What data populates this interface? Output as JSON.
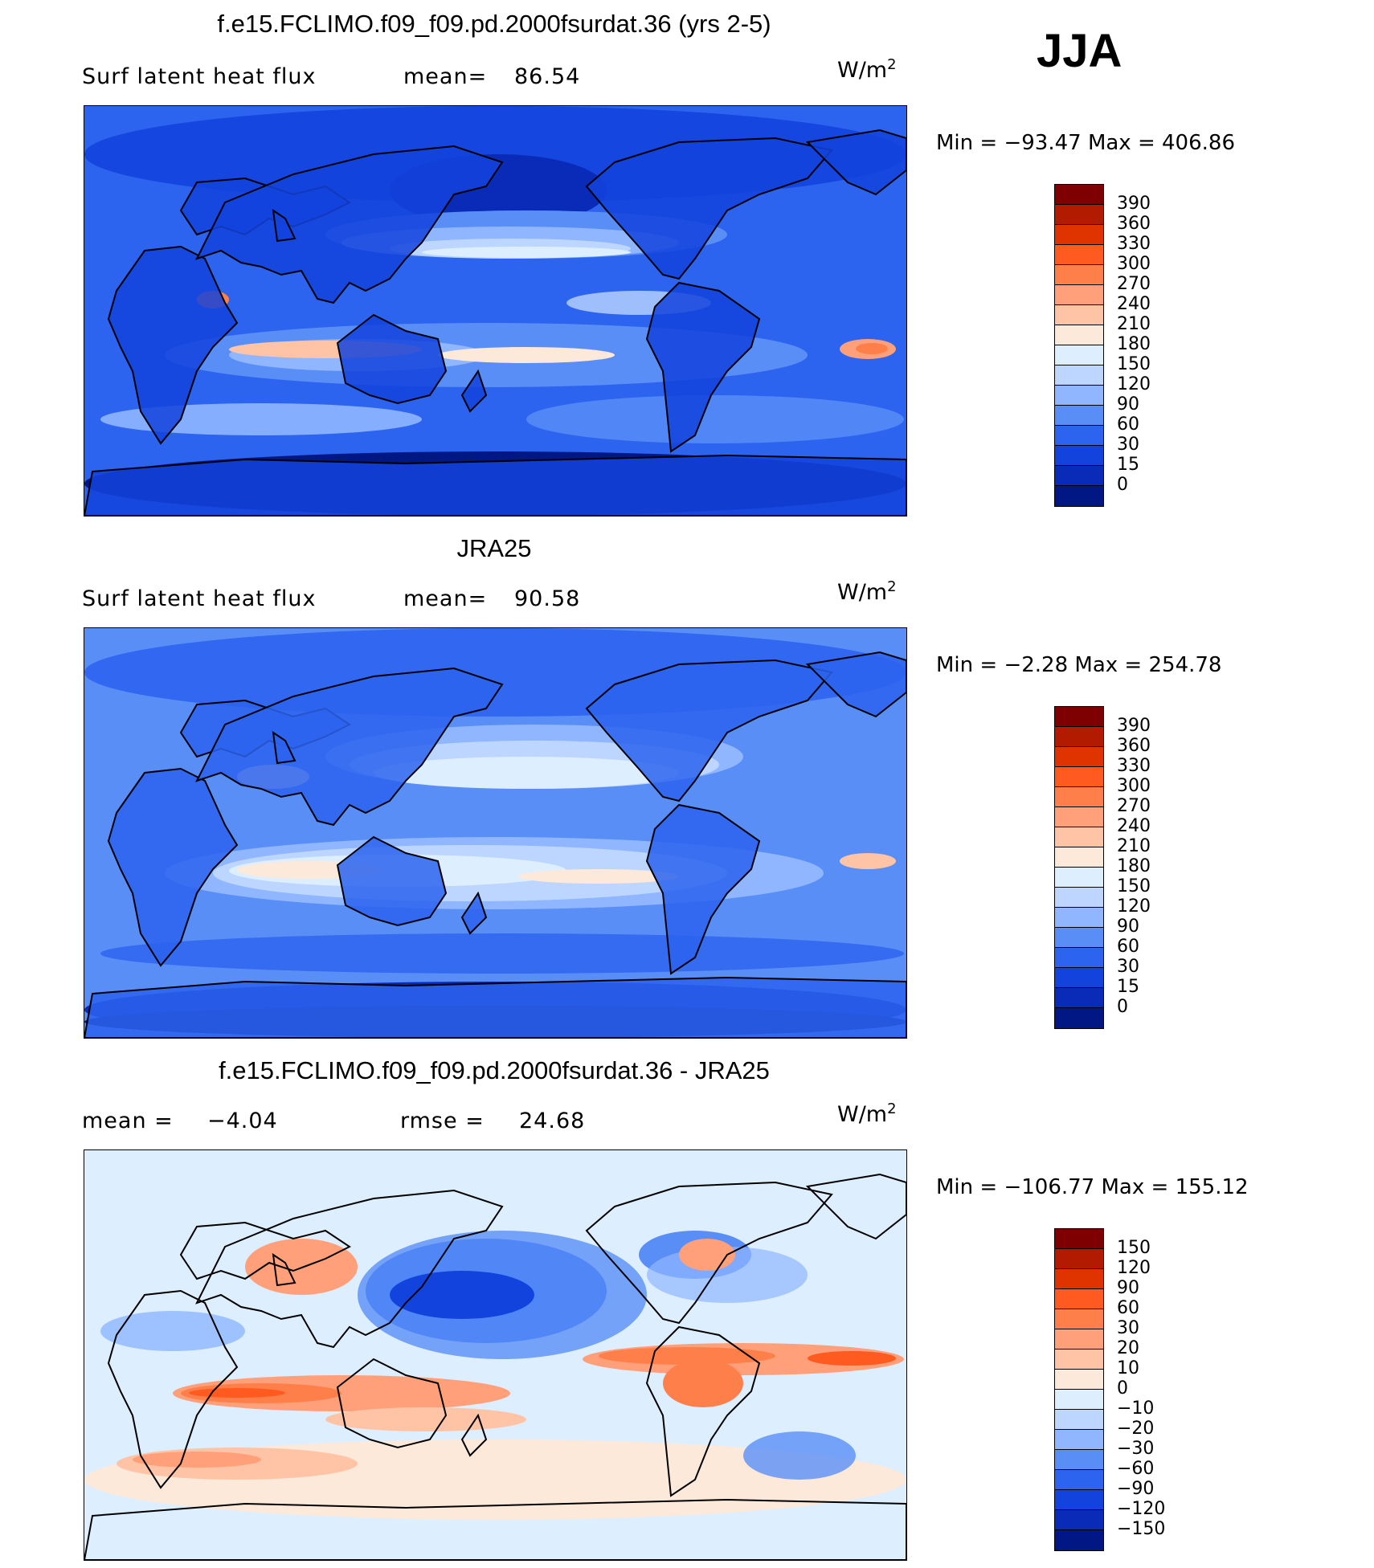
{
  "season": "JJA",
  "panels": [
    {
      "title": "f.e15.FCLIMO.f09_f09.pd.2000fsurdat.36 (yrs 2-5)",
      "left_label": "Surf  latent  heat  flux",
      "stat_label": "mean=",
      "stat_value": "86.54",
      "units": "W/m",
      "units_sup": "2",
      "min_label": "Min  =",
      "min_value": "−93.47",
      "max_label": "Max  =",
      "max_value": "406.86",
      "colorbar": {
        "labels": [
          "390",
          "360",
          "330",
          "300",
          "270",
          "240",
          "210",
          "180",
          "150",
          "120",
          "90",
          "60",
          "30",
          "15",
          "0"
        ],
        "colors": [
          "#7f0000",
          "#b31b00",
          "#e03400",
          "#ff5a1f",
          "#ff7f4a",
          "#ffa07a",
          "#ffc4a6",
          "#fde9d9",
          "#ddeeff",
          "#bcd6ff",
          "#8fb6ff",
          "#5a8ef7",
          "#2c63ef",
          "#1343dd",
          "#0a2bb8",
          "#001784"
        ]
      },
      "field": "model"
    },
    {
      "title": "JRA25",
      "left_label": "Surf  latent  heat  flux",
      "stat_label": "mean=",
      "stat_value": "90.58",
      "units": "W/m",
      "units_sup": "2",
      "min_label": "Min  =",
      "min_value": "−2.28",
      "max_label": "Max  =",
      "max_value": "254.78",
      "colorbar": {
        "labels": [
          "390",
          "360",
          "330",
          "300",
          "270",
          "240",
          "210",
          "180",
          "150",
          "120",
          "90",
          "60",
          "30",
          "15",
          "0"
        ],
        "colors": [
          "#7f0000",
          "#b31b00",
          "#e03400",
          "#ff5a1f",
          "#ff7f4a",
          "#ffa07a",
          "#ffc4a6",
          "#fde9d9",
          "#ddeeff",
          "#bcd6ff",
          "#8fb6ff",
          "#5a8ef7",
          "#2c63ef",
          "#1343dd",
          "#0a2bb8",
          "#001784"
        ]
      },
      "field": "obs"
    },
    {
      "title": "f.e15.FCLIMO.f09_f09.pd.2000fsurdat.36 - JRA25",
      "left_label": "mean  =",
      "left_value": "−4.04",
      "stat_label": "rmse  =",
      "stat_value": "24.68",
      "units": "W/m",
      "units_sup": "2",
      "min_label": "Min  =",
      "min_value": "−106.77",
      "max_label": "Max  =",
      "max_value": "155.12",
      "colorbar": {
        "labels": [
          "150",
          "120",
          "90",
          "60",
          "30",
          "20",
          "10",
          "0",
          "−10",
          "−20",
          "−30",
          "−60",
          "−90",
          "−120",
          "−150"
        ],
        "colors": [
          "#7f0000",
          "#b31b00",
          "#e03400",
          "#ff5a1f",
          "#ff7f4a",
          "#ffa07a",
          "#ffc4a6",
          "#fde9d9",
          "#ddeeff",
          "#bcd6ff",
          "#8fb6ff",
          "#5a8ef7",
          "#2c63ef",
          "#1343dd",
          "#0a2bb8",
          "#001784"
        ]
      },
      "field": "diff"
    }
  ]
}
